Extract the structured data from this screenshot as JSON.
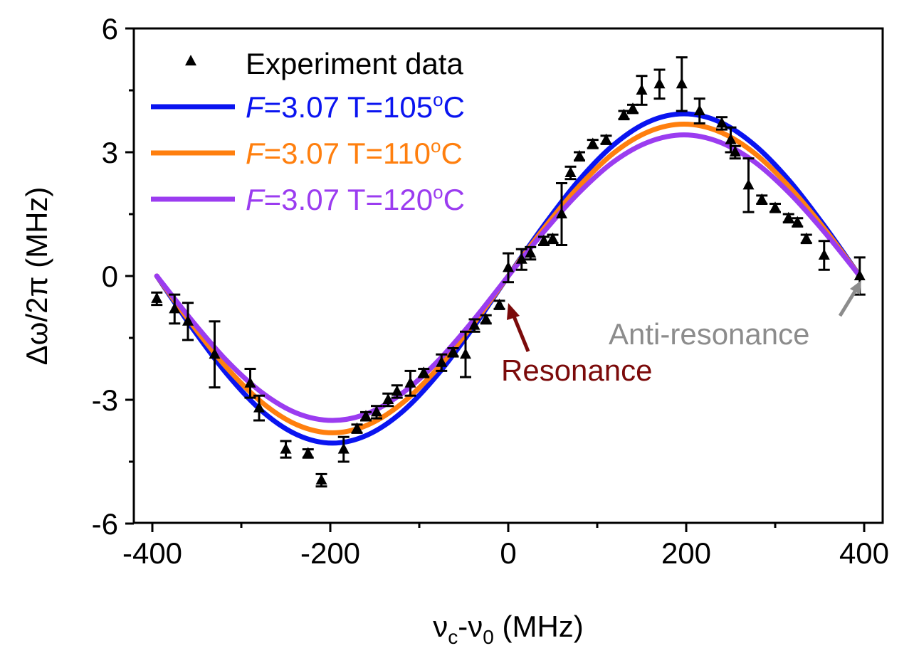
{
  "chart_data": {
    "type": "line",
    "xlabel": "νc-ν0 (MHz)",
    "xlabel_main": "ν",
    "xlabel_sub1": "c",
    "xlabel_mid": "-ν",
    "xlabel_sub2": "0",
    "xlabel_unit": " (MHz)",
    "ylabel": "Δω/2π (MHz)",
    "xlim": [
      -420,
      420
    ],
    "ylim": [
      -6,
      6
    ],
    "xticks": [
      -400,
      -200,
      0,
      200,
      400
    ],
    "xticks_minor": [
      -300,
      -100,
      100,
      300
    ],
    "yticks": [
      6,
      3,
      0,
      -3,
      -6
    ],
    "yticks_minor": [
      4.5,
      1.5,
      -1.5,
      -4.5
    ],
    "grid": false,
    "legend_position": "top-left",
    "experiment": {
      "name": "Experiment data",
      "color": "#000000",
      "x": [
        -395,
        -375,
        -360,
        -330,
        -290,
        -280,
        -250,
        -225,
        -210,
        -185,
        -170,
        -160,
        -148,
        -135,
        -125,
        -110,
        -95,
        -75,
        -62,
        -48,
        -38,
        -25,
        -10,
        0,
        15,
        25,
        40,
        50,
        60,
        70,
        80,
        95,
        110,
        130,
        140,
        150,
        170,
        195,
        215,
        240,
        250,
        255,
        270,
        285,
        300,
        315,
        325,
        335,
        355,
        395
      ],
      "y": [
        -0.55,
        -0.8,
        -1.1,
        -1.9,
        -2.6,
        -3.2,
        -4.2,
        -4.3,
        -4.95,
        -4.2,
        -3.7,
        -3.4,
        -3.3,
        -3.0,
        -2.8,
        -2.6,
        -2.35,
        -2.1,
        -1.85,
        -1.9,
        -1.2,
        -1.05,
        -0.7,
        0.2,
        0.4,
        0.55,
        0.85,
        0.9,
        1.5,
        2.5,
        2.9,
        3.2,
        3.3,
        3.9,
        4.05,
        4.5,
        4.65,
        4.65,
        4.0,
        3.7,
        3.3,
        3.0,
        2.2,
        1.85,
        1.65,
        1.4,
        1.3,
        0.9,
        0.5,
        0.0
      ],
      "err": [
        0.15,
        0.35,
        0.45,
        0.8,
        0.35,
        0.3,
        0.2,
        0.1,
        0.15,
        0.3,
        0.1,
        0.1,
        0.15,
        0.15,
        0.15,
        0.3,
        0.1,
        0.2,
        0.1,
        0.55,
        0.15,
        0.1,
        0.1,
        0.35,
        0.25,
        0.15,
        0.1,
        0.1,
        0.75,
        0.15,
        0.1,
        0.1,
        0.1,
        0.1,
        0.1,
        0.35,
        0.35,
        0.65,
        0.3,
        0.15,
        0.3,
        0.15,
        0.65,
        0.1,
        0.1,
        0.1,
        0.1,
        0.1,
        0.35,
        0.45
      ]
    },
    "x": [
      -395,
      -355.5,
      -316,
      -276.5,
      -237,
      -197.5,
      -158,
      -118.5,
      -79,
      -39.5,
      0,
      39.5,
      79,
      118.5,
      158,
      197.5,
      237,
      276.5,
      316,
      355.5,
      395
    ],
    "series": [
      {
        "name": "F=3.07 T=105°C",
        "F": "F",
        "params": "=3.07 T=105",
        "deg": "o",
        "unit": "C",
        "color": "#0a14f0",
        "values": [
          0,
          -1.25,
          -2.38,
          -3.28,
          -3.85,
          -4.05,
          -3.85,
          -3.28,
          -2.38,
          -1.25,
          0,
          1.21,
          2.31,
          3.18,
          3.74,
          3.93,
          3.74,
          3.18,
          2.31,
          1.21,
          0
        ]
      },
      {
        "name": "F=3.07 T=110°C",
        "F": "F",
        "params": "=3.07 T=110",
        "deg": "o",
        "unit": "C",
        "color": "#ff7f0e",
        "values": [
          0,
          -1.17,
          -2.23,
          -3.07,
          -3.61,
          -3.8,
          -3.61,
          -3.07,
          -2.23,
          -1.17,
          0,
          1.14,
          2.16,
          2.98,
          3.5,
          3.68,
          3.5,
          2.98,
          2.16,
          1.14,
          0
        ]
      },
      {
        "name": "F=3.07 T=120°C",
        "F": "F",
        "params": "=3.07 T=120",
        "deg": "o",
        "unit": "C",
        "color": "#9b3cf0",
        "values": [
          0,
          -1.08,
          -2.06,
          -2.83,
          -3.33,
          -3.5,
          -3.33,
          -2.83,
          -2.06,
          -1.08,
          0,
          1.06,
          2.01,
          2.77,
          3.25,
          3.42,
          3.25,
          2.77,
          2.01,
          1.06,
          0
        ]
      }
    ],
    "annotations": [
      {
        "text": "Resonance",
        "color": "#7b0a0a",
        "points_to": [
          0,
          -0.7
        ]
      },
      {
        "text": "Anti-resonance",
        "color": "#8c8c8c",
        "points_to": [
          395,
          0
        ]
      }
    ]
  }
}
